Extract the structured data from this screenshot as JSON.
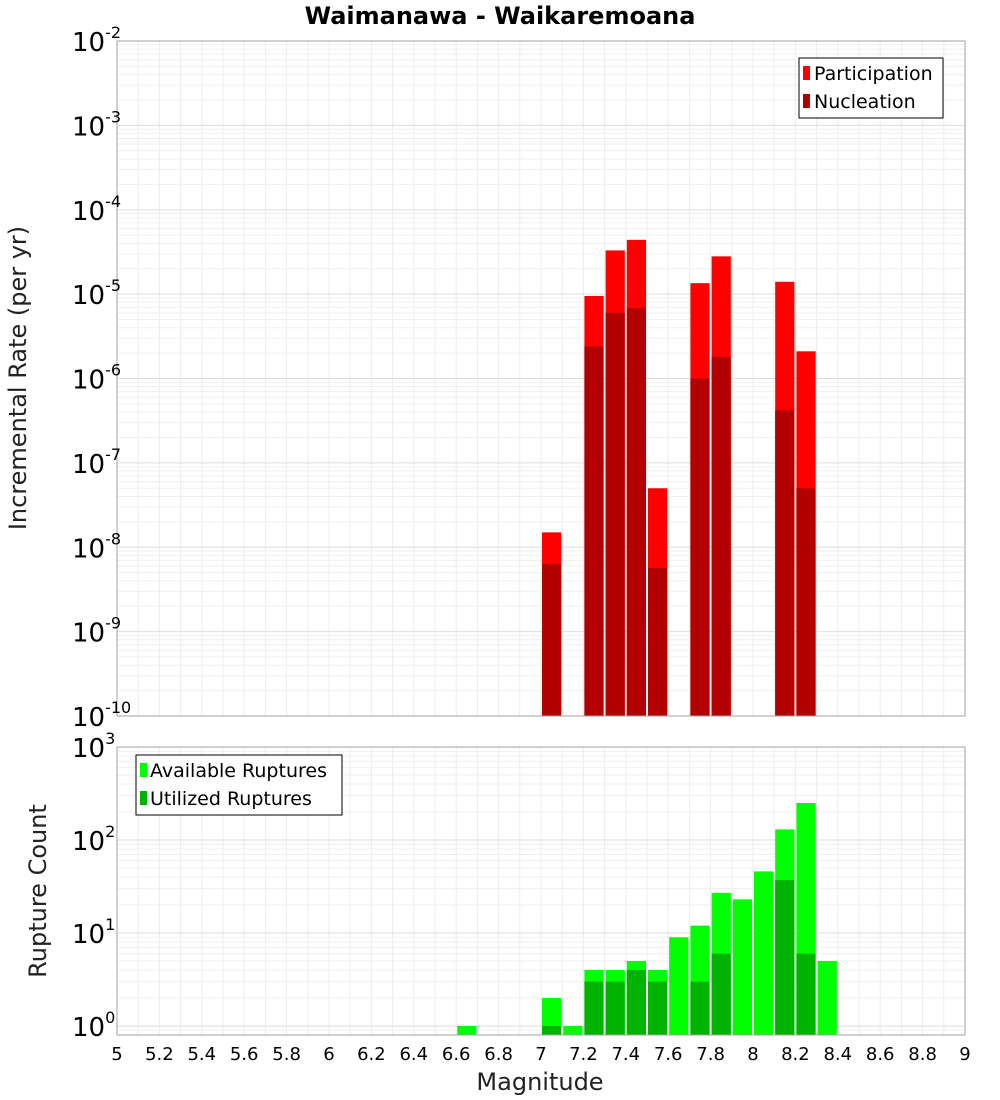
{
  "chart_data": [
    {
      "type": "bar",
      "id": "rate",
      "title": "Waimanawa - Waikaremoana",
      "xlabel": "Magnitude",
      "ylabel": "Incremental Rate (per yr)",
      "yscale": "log",
      "ylim": [
        1e-10,
        0.01
      ],
      "xlim": [
        5,
        9
      ],
      "grid": true,
      "legend_position": "top-right",
      "yticks": [
        {
          "base": "10",
          "exp": "-10",
          "value": 1e-10
        },
        {
          "base": "10",
          "exp": "-9",
          "value": 1e-09
        },
        {
          "base": "10",
          "exp": "-8",
          "value": 1e-08
        },
        {
          "base": "10",
          "exp": "-7",
          "value": 1e-07
        },
        {
          "base": "10",
          "exp": "-6",
          "value": 1e-06
        },
        {
          "base": "10",
          "exp": "-5",
          "value": 1e-05
        },
        {
          "base": "10",
          "exp": "-4",
          "value": 0.0001
        },
        {
          "base": "10",
          "exp": "-3",
          "value": 0.001
        },
        {
          "base": "10",
          "exp": "-2",
          "value": 0.01
        }
      ],
      "series": [
        {
          "name": "Participation",
          "color": "#ff0000",
          "x": [
            7.05,
            7.25,
            7.35,
            7.45,
            7.55,
            7.75,
            7.85,
            8.15,
            8.25
          ],
          "values": [
            1.5e-08,
            9.5e-06,
            3.3e-05,
            4.4e-05,
            5e-08,
            1.35e-05,
            2.8e-05,
            1.4e-05,
            2.1e-06
          ]
        },
        {
          "name": "Nucleation",
          "color": "#b30000",
          "x": [
            7.05,
            7.25,
            7.35,
            7.45,
            7.55,
            7.75,
            7.85,
            8.15,
            8.25
          ],
          "values": [
            6.3e-09,
            2.4e-06,
            6e-06,
            6.8e-06,
            5.7e-09,
            1e-06,
            1.8e-06,
            4.2e-07,
            5e-08
          ]
        }
      ]
    },
    {
      "type": "bar",
      "id": "count",
      "xlabel": "Magnitude",
      "ylabel": "Rupture Count",
      "yscale": "log",
      "ylim": [
        0.8,
        1000
      ],
      "xlim": [
        5,
        9
      ],
      "grid": true,
      "legend_position": "top-left",
      "xticks": [
        "5",
        "5.2",
        "5.4",
        "5.6",
        "5.8",
        "6",
        "6.2",
        "6.4",
        "6.6",
        "6.8",
        "7",
        "7.2",
        "7.4",
        "7.6",
        "7.8",
        "8",
        "8.2",
        "8.4",
        "8.6",
        "8.8",
        "9"
      ],
      "yticks": [
        {
          "base": "10",
          "exp": "0",
          "value": 1
        },
        {
          "base": "10",
          "exp": "1",
          "value": 10
        },
        {
          "base": "10",
          "exp": "2",
          "value": 100
        },
        {
          "base": "10",
          "exp": "3",
          "value": 1000
        }
      ],
      "series": [
        {
          "name": "Available Ruptures",
          "color": "#00ff00",
          "x": [
            6.65,
            7.05,
            7.15,
            7.25,
            7.35,
            7.45,
            7.55,
            7.65,
            7.75,
            7.85,
            7.95,
            8.05,
            8.15,
            8.25,
            8.35
          ],
          "values": [
            1,
            2,
            1,
            4,
            4,
            5,
            4,
            9,
            12,
            27,
            23,
            46,
            130,
            250,
            5
          ]
        },
        {
          "name": "Utilized Ruptures",
          "color": "#00b300",
          "x": [
            7.05,
            7.25,
            7.35,
            7.45,
            7.55,
            7.75,
            7.85,
            8.15,
            8.25
          ],
          "values": [
            1,
            3,
            3,
            4,
            3,
            3,
            6,
            37,
            6
          ]
        }
      ]
    }
  ]
}
